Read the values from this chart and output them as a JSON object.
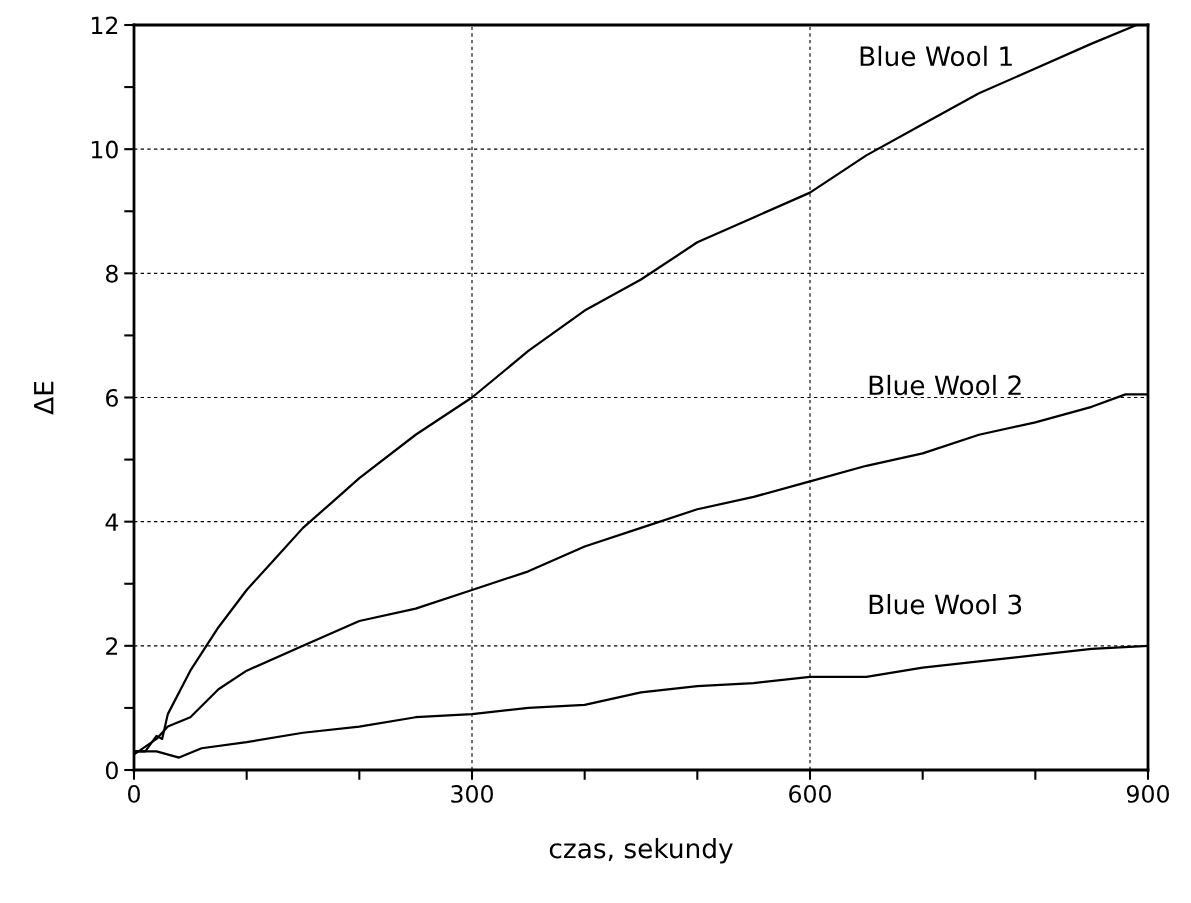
{
  "chart_data": {
    "type": "line",
    "xlabel": "czas, sekundy",
    "ylabel": "ΔE",
    "xlim": [
      0,
      900
    ],
    "ylim": [
      0,
      12
    ],
    "xticks": [
      0,
      {
        "value": 100,
        "label": null
      },
      {
        "value": 200,
        "label": null
      },
      300,
      {
        "value": 400,
        "label": null
      },
      {
        "value": 500,
        "label": null
      },
      600,
      {
        "value": 700,
        "label": null
      },
      {
        "value": 800,
        "label": null
      },
      900
    ],
    "yticks": [
      0,
      {
        "value": 1,
        "label": null
      },
      2,
      {
        "value": 3,
        "label": null
      },
      4,
      {
        "value": 5,
        "label": null
      },
      6,
      {
        "value": 7,
        "label": null
      },
      8,
      {
        "value": 9,
        "label": null
      },
      10,
      {
        "value": 11,
        "label": null
      },
      12
    ],
    "grid": true,
    "line_style": "solid",
    "marker": "none",
    "legend": false,
    "series": [
      {
        "name": "Blue Wool 1",
        "color": "#000000",
        "x": [
          0,
          10,
          20,
          25,
          30,
          50,
          75,
          100,
          125,
          150,
          175,
          200,
          250,
          300,
          350,
          400,
          450,
          500,
          550,
          600,
          650,
          700,
          750,
          800,
          850,
          890
        ],
        "values": [
          0.3,
          0.3,
          0.55,
          0.5,
          0.9,
          1.6,
          2.3,
          2.9,
          3.4,
          3.9,
          4.3,
          4.7,
          5.4,
          6.0,
          6.75,
          7.4,
          7.9,
          8.5,
          8.9,
          9.3,
          9.9,
          10.4,
          10.9,
          11.3,
          11.7,
          12.0
        ]
      },
      {
        "name": "Blue Wool 2",
        "color": "#000000",
        "x": [
          0,
          20,
          30,
          50,
          75,
          100,
          150,
          200,
          250,
          300,
          350,
          400,
          450,
          500,
          550,
          600,
          650,
          700,
          750,
          800,
          850,
          880,
          900
        ],
        "values": [
          0.25,
          0.5,
          0.7,
          0.85,
          1.3,
          1.6,
          2.0,
          2.4,
          2.6,
          2.9,
          3.2,
          3.6,
          3.9,
          4.2,
          4.4,
          4.65,
          4.9,
          5.1,
          5.4,
          5.6,
          5.85,
          6.05,
          6.05
        ]
      },
      {
        "name": "Blue Wool 3",
        "color": "#000000",
        "x": [
          0,
          10,
          20,
          40,
          60,
          100,
          150,
          200,
          250,
          300,
          350,
          400,
          450,
          500,
          550,
          600,
          650,
          700,
          750,
          800,
          850,
          900
        ],
        "values": [
          0.3,
          0.3,
          0.3,
          0.2,
          0.35,
          0.45,
          0.6,
          0.7,
          0.85,
          0.9,
          1.0,
          1.05,
          1.25,
          1.35,
          1.4,
          1.5,
          1.5,
          1.65,
          1.75,
          1.85,
          1.95,
          2.0
        ]
      }
    ]
  }
}
